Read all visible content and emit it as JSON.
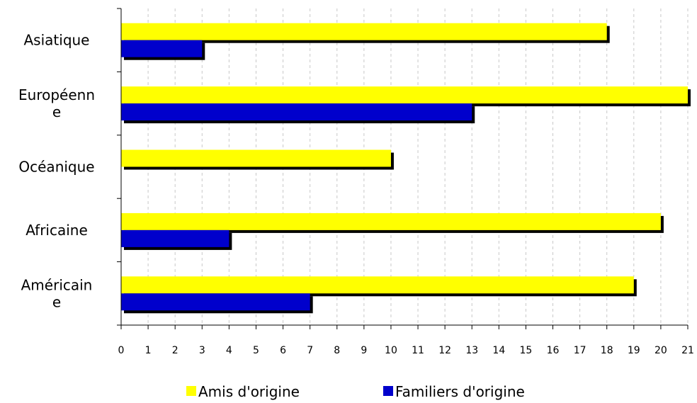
{
  "chart_data": {
    "type": "bar",
    "orientation": "horizontal",
    "categories": [
      [
        "Asiatique"
      ],
      [
        "Européenn",
        "e"
      ],
      [
        "Océanique"
      ],
      [
        "Africaine"
      ],
      [
        "Américain",
        "e"
      ]
    ],
    "series": [
      {
        "name": "Amis d'origine",
        "color": "#ffff00",
        "values": [
          18,
          21,
          10,
          20,
          19
        ]
      },
      {
        "name": "Familiers d'origine",
        "color": "#0000cc",
        "values": [
          3,
          13,
          0,
          4,
          7
        ]
      }
    ],
    "xlim": [
      0,
      21
    ],
    "x_ticks": [
      "0",
      "1",
      "2",
      "3",
      "4",
      "5",
      "6",
      "7",
      "8",
      "9",
      "10",
      "11",
      "12",
      "13",
      "14",
      "15",
      "16",
      "17",
      "18",
      "19",
      "20",
      "21"
    ],
    "grid": "vertical dashed",
    "legend": "bottom",
    "shadow_color": "#000000"
  }
}
